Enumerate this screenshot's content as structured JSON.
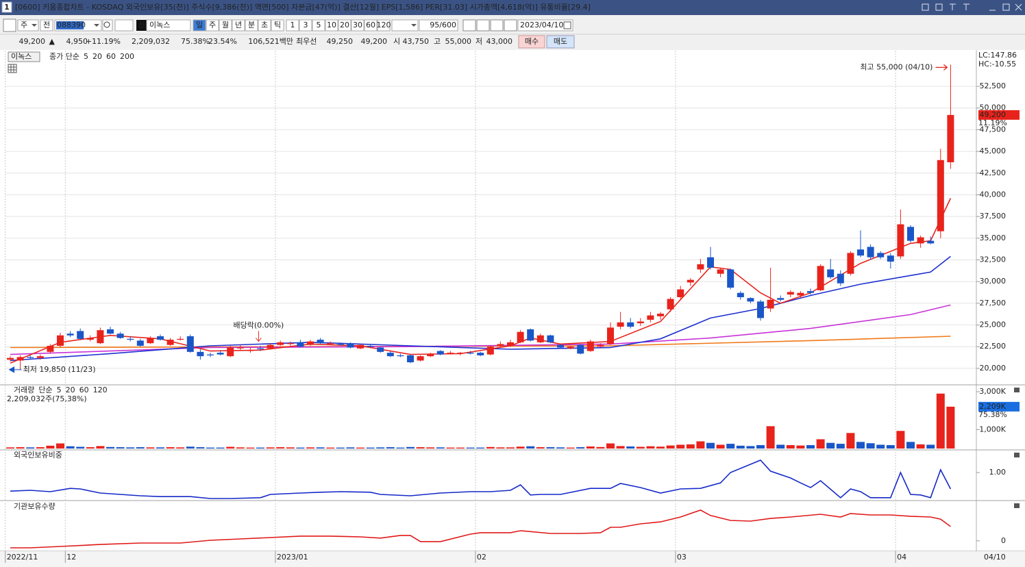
{
  "title_bar": {
    "number": "1",
    "text": "[0600] 키움종합차트 - KOSDAQ 외국인보유[35(천)] 주식수[9,386(천)] 액면[500] 자본금[47(억)] 결산[12월] EPS[1,586] PER[31.03] 시가총액[4,618(억)] 유통비율[29.4]"
  },
  "toolbar": {
    "type_select": "주",
    "prev": "전",
    "code": "088390",
    "name_tag": "신",
    "name": "이녹스",
    "periods": [
      "일",
      "주",
      "월",
      "년",
      "분",
      "초",
      "틱"
    ],
    "intervals": [
      "1",
      "3",
      "5",
      "10",
      "20",
      "30",
      "60",
      "120"
    ],
    "count": "95/600",
    "date": "2023/04/10"
  },
  "quote": {
    "price": "49,200",
    "arrow": "▲",
    "change": "4,950",
    "change_pct": "+11.19%",
    "volume": "2,209,032",
    "volume_ratio": "75.38%",
    "turnover": "23.54%",
    "amount": "106,521백만",
    "best_label": "최우선",
    "ask": "49,250",
    "bid": "49,200",
    "open_label": "시",
    "open": "43,750",
    "high_label": "고",
    "high": "55,000",
    "low_label": "저",
    "low": "43,000",
    "buy": "매수",
    "sell": "매도"
  },
  "chart_data": [
    {
      "type": "candlestick",
      "name": "이녹스",
      "legend_label": "종가 단순",
      "legend_color": "#e8231c",
      "up_color": "#e8231c",
      "down_color": "#1a56c8",
      "open": [
        21000,
        20900,
        21300,
        21200,
        21900,
        22600,
        24000,
        24300,
        23300,
        22900,
        24500,
        24000,
        23400,
        23200,
        22900,
        23700,
        22700,
        23300,
        23700,
        21900,
        21600,
        21800,
        21400,
        22300,
        22000,
        22300,
        22300,
        22700,
        22800,
        23000,
        22700,
        23300,
        22800,
        22800,
        22900,
        22300,
        22600,
        22400,
        21800,
        21500,
        21500,
        20900,
        21400,
        22000,
        21700,
        21700,
        21800,
        21800,
        21600,
        22600,
        22600,
        23000,
        24500,
        23000,
        23800,
        22700,
        22300,
        22700,
        22000,
        22500,
        22800,
        24800,
        25300,
        25200,
        25600,
        26000,
        26800,
        28200,
        29900,
        31400,
        32800,
        30900,
        31400,
        28700,
        28100,
        27700,
        26900,
        28100,
        28500,
        28400,
        28900,
        29000,
        31400,
        30900,
        30900,
        33700,
        34000,
        33300,
        33000,
        32900,
        36300,
        34400,
        34700,
        35800,
        43750
      ],
      "high": [
        21400,
        21500,
        21500,
        21600,
        22800,
        24100,
        24300,
        24600,
        23800,
        24700,
        24800,
        24200,
        23700,
        23400,
        23700,
        23900,
        23500,
        23700,
        23900,
        22200,
        21800,
        22100,
        22600,
        22700,
        22400,
        22600,
        22900,
        23200,
        23100,
        23300,
        23300,
        23500,
        23100,
        23000,
        23000,
        22800,
        22800,
        22500,
        22000,
        21700,
        21600,
        21500,
        21800,
        22100,
        22000,
        21900,
        22000,
        21900,
        22600,
        23100,
        23300,
        24400,
        24600,
        24000,
        23900,
        22800,
        22600,
        22800,
        23300,
        22900,
        25300,
        26500,
        25800,
        25800,
        26500,
        26500,
        28200,
        29500,
        30400,
        32600,
        34000,
        31600,
        31500,
        28900,
        28200,
        27900,
        31600,
        28400,
        29000,
        28900,
        29200,
        32000,
        32600,
        31300,
        33500,
        35900,
        34300,
        33500,
        33300,
        38300,
        36500,
        35300,
        35200,
        45300,
        55000
      ],
      "low": [
        20800,
        19850,
        21000,
        21000,
        21700,
        22400,
        23600,
        23300,
        23100,
        22800,
        23900,
        23400,
        23100,
        22500,
        22800,
        23200,
        22600,
        23200,
        21800,
        21000,
        21300,
        21500,
        21300,
        22100,
        21800,
        22000,
        22200,
        22600,
        22600,
        22400,
        22600,
        22800,
        22700,
        22600,
        22300,
        22200,
        22400,
        21800,
        21300,
        21300,
        20600,
        20800,
        21300,
        21500,
        21600,
        21500,
        21600,
        21400,
        21500,
        22500,
        22500,
        22900,
        23100,
        22900,
        22900,
        22300,
        22200,
        21600,
        21900,
        22400,
        22700,
        24500,
        24600,
        24900,
        25300,
        25600,
        26500,
        28000,
        29500,
        31000,
        31400,
        30500,
        29100,
        27900,
        27500,
        25500,
        26500,
        27700,
        28200,
        28100,
        28500,
        28900,
        30300,
        29500,
        30700,
        32800,
        32500,
        32600,
        31500,
        32600,
        34500,
        33900,
        34300,
        35000,
        43000
      ],
      "close": [
        21200,
        21300,
        21200,
        21400,
        22600,
        23800,
        23800,
        23400,
        23500,
        24400,
        24000,
        23500,
        23300,
        22600,
        23500,
        23300,
        23300,
        23400,
        21900,
        21400,
        21500,
        21600,
        22400,
        22400,
        22100,
        22200,
        22700,
        23000,
        22900,
        22500,
        23100,
        22900,
        22900,
        22700,
        22400,
        22700,
        22500,
        21900,
        21400,
        21400,
        20700,
        21400,
        21700,
        21600,
        21800,
        21800,
        21700,
        21500,
        22500,
        22800,
        23000,
        24200,
        23200,
        23800,
        23000,
        22400,
        22500,
        21700,
        23100,
        22700,
        24700,
        25300,
        24800,
        25400,
        26100,
        26300,
        28000,
        29100,
        30200,
        32000,
        31600,
        31400,
        29300,
        28200,
        27700,
        25800,
        27900,
        27900,
        28800,
        28700,
        28700,
        31800,
        30500,
        29800,
        33300,
        33000,
        32800,
        32800,
        32300,
        36600,
        34700,
        35100,
        34400,
        44000,
        49200
      ],
      "moving_averages": [
        {
          "name": "5",
          "color": "#e8231c",
          "x": [
            0,
            5,
            10,
            15,
            20,
            25,
            30,
            35,
            40,
            45,
            50,
            52,
            55,
            60,
            65,
            70,
            72,
            75,
            77,
            80,
            85,
            90,
            92,
            94
          ],
          "values": [
            20600,
            23000,
            23800,
            23400,
            22000,
            22100,
            22800,
            22600,
            21600,
            21700,
            22600,
            23500,
            22800,
            23100,
            25400,
            31700,
            31400,
            28700,
            27500,
            28700,
            32100,
            34400,
            34700,
            39600
          ]
        },
        {
          "name": "20",
          "color": "#1c2fd0",
          "x": [
            0,
            10,
            20,
            30,
            40,
            50,
            60,
            65,
            70,
            75,
            80,
            85,
            90,
            92,
            94
          ],
          "values": [
            20900,
            21700,
            22600,
            23000,
            22600,
            22200,
            22400,
            23400,
            25800,
            26900,
            28400,
            29700,
            30700,
            31100,
            32900
          ]
        },
        {
          "name": "60",
          "color": "#c832d8",
          "x": [
            0,
            20,
            40,
            60,
            70,
            80,
            90,
            94
          ],
          "values": [
            21600,
            22400,
            22500,
            22800,
            23500,
            24600,
            26200,
            27300
          ]
        },
        {
          "name": "200",
          "color": "#f07818",
          "x": [
            0,
            30,
            60,
            80,
            94
          ],
          "values": [
            22400,
            22500,
            22600,
            23200,
            23700
          ]
        }
      ],
      "ylim": [
        18100,
        56450
      ],
      "yticks": [
        {
          "value": 20000,
          "label": "20,000"
        },
        {
          "value": 22500,
          "label": "22,500"
        },
        {
          "value": 25000,
          "label": "25,000"
        },
        {
          "value": 27500,
          "label": "27,500"
        },
        {
          "value": 30000,
          "label": "30,000"
        },
        {
          "value": 32500,
          "label": "32,500"
        },
        {
          "value": 35000,
          "label": "35,000"
        },
        {
          "value": 37500,
          "label": "37,500"
        },
        {
          "value": 40000,
          "label": "40,000"
        },
        {
          "value": 42500,
          "label": "42,500"
        },
        {
          "value": 45000,
          "label": "45,000"
        },
        {
          "value": 47500,
          "label": "47,500"
        },
        {
          "value": 50000,
          "label": "50,000"
        },
        {
          "value": 52500,
          "label": "52,500"
        }
      ],
      "grid": true,
      "x_ticks": [
        {
          "value": 0,
          "label": "2022/11"
        },
        {
          "value": 6,
          "label": "12"
        },
        {
          "value": 27,
          "label": "2023/01"
        },
        {
          "value": 47,
          "label": "02"
        },
        {
          "value": 67,
          "label": "03"
        },
        {
          "value": 89,
          "label": "04"
        }
      ],
      "last_date": "04/10",
      "lc": "LC:147.86",
      "hc": "HC:-10.55",
      "annotations": [
        {
          "text": "최고 55,000 (04/10)",
          "index": 94,
          "at": "high"
        },
        {
          "text": "최저 19,850 (11/23)",
          "index": 1,
          "at": "low"
        },
        {
          "text": "배당락(0.00%)",
          "index": 24,
          "at": "above"
        }
      ],
      "last_value_label": "49,200",
      "last_change_label": "11.19%"
    },
    {
      "type": "bar",
      "legend": [
        {
          "name": "거래량",
          "color": "#2b82c4"
        },
        {
          "name": "단순",
          "color": "#b040c0"
        },
        {
          "name": "5",
          "color": "#d040d0"
        },
        {
          "name": "20",
          "color": "#e0a020"
        },
        {
          "name": "60",
          "color": "#30a040"
        },
        {
          "name": "120",
          "color": "#808080"
        }
      ],
      "header": "2,209,032주(75,38%)",
      "values": [
        60,
        70,
        60,
        70,
        150,
        270,
        120,
        90,
        70,
        130,
        80,
        70,
        60,
        70,
        60,
        60,
        70,
        60,
        100,
        70,
        50,
        50,
        90,
        60,
        50,
        50,
        60,
        70,
        60,
        50,
        60,
        60,
        50,
        50,
        60,
        50,
        50,
        60,
        70,
        50,
        80,
        70,
        60,
        60,
        50,
        50,
        50,
        50,
        80,
        60,
        60,
        100,
        120,
        70,
        70,
        60,
        50,
        70,
        110,
        80,
        270,
        130,
        110,
        90,
        120,
        100,
        160,
        200,
        220,
        380,
        300,
        200,
        250,
        150,
        130,
        180,
        1180,
        200,
        180,
        160,
        180,
        490,
        300,
        250,
        820,
        350,
        280,
        200,
        180,
        930,
        350,
        220,
        200,
        2900,
        2209
      ],
      "ylim": [
        0,
        3290
      ],
      "yticks": [
        {
          "value": 1000,
          "label": "1,000K"
        },
        {
          "value": 3000,
          "label": "3,000K"
        }
      ],
      "last_value_label": "2,209K",
      "last_ratio_label": "75.38%"
    },
    {
      "type": "line",
      "title": "외국인보유비중",
      "color": "#1428c8",
      "x": [
        0,
        2,
        4,
        6,
        7,
        9,
        11,
        13,
        15,
        18,
        20,
        22,
        25,
        26,
        29,
        31,
        33,
        36,
        37,
        40,
        43,
        46,
        48,
        50,
        51,
        52,
        53,
        55,
        58,
        60,
        61,
        63,
        65,
        67,
        69,
        71,
        72,
        74,
        75,
        76,
        78,
        79,
        80,
        81,
        83,
        84,
        85,
        86,
        88,
        89,
        90,
        91,
        92,
        93,
        94
      ],
      "values": [
        0.66,
        0.675,
        0.65,
        0.71,
        0.7,
        0.625,
        0.6,
        0.575,
        0.56,
        0.56,
        0.525,
        0.525,
        0.54,
        0.6,
        0.625,
        0.64,
        0.65,
        0.64,
        0.6,
        0.575,
        0.625,
        0.65,
        0.65,
        0.675,
        0.775,
        0.59,
        0.6,
        0.6,
        0.71,
        0.71,
        0.8,
        0.725,
        0.625,
        0.7,
        0.71,
        0.81,
        1.0,
        1.15,
        1.225,
        1.025,
        0.9,
        0.81,
        0.725,
        0.85,
        0.54,
        0.7,
        0.65,
        0.54,
        0.54,
        1.0,
        0.6,
        0.59,
        0.54,
        1.05,
        0.7
      ],
      "ylim": [
        0.5,
        1.35
      ],
      "yticks": [
        {
          "value": 1,
          "label": "1.00"
        }
      ]
    },
    {
      "type": "line",
      "title": "기관보유수량",
      "color": "#e01818",
      "x": [
        0,
        2,
        5,
        9,
        13,
        17,
        20,
        23,
        26,
        29,
        32,
        35,
        37,
        39,
        40,
        41,
        43,
        46,
        47,
        50,
        51,
        54,
        57,
        59,
        60,
        61,
        63,
        65,
        67,
        69,
        70,
        72,
        74,
        76,
        78,
        81,
        83,
        84,
        86,
        88,
        90,
        92,
        93,
        94
      ],
      "values": [
        -193,
        -193,
        -155,
        -100,
        -60,
        -60,
        15,
        53,
        90,
        130,
        130,
        110,
        75,
        150,
        150,
        -20,
        -20,
        185,
        225,
        225,
        280,
        205,
        205,
        225,
        375,
        375,
        470,
        525,
        660,
        850,
        700,
        565,
        545,
        620,
        660,
        735,
        660,
        755,
        715,
        715,
        680,
        660,
        600,
        395
      ],
      "ylim": [
        -250,
        1000
      ],
      "yticks": [
        0
      ]
    }
  ]
}
